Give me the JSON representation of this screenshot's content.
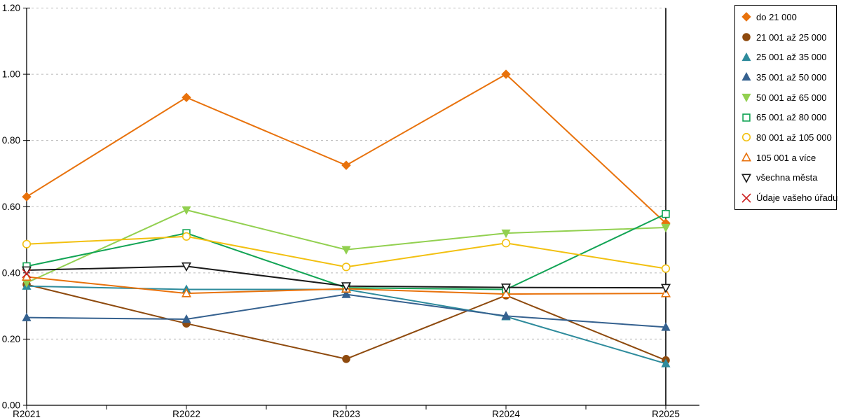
{
  "chart_data": {
    "type": "line",
    "title": "",
    "xlabel": "",
    "ylabel": "",
    "categories": [
      "R2021",
      "R2022",
      "R2023",
      "R2024",
      "R2025"
    ],
    "ylim": [
      0.0,
      1.2
    ],
    "ytick_step": 0.2,
    "ytick_labels": [
      "0.00",
      "0.20",
      "0.40",
      "0.60",
      "0.80",
      "1.00",
      "1.20"
    ],
    "grid": "horizontal-dashed",
    "grid_color": "#b8b8b8",
    "axis_color": "#000000",
    "legend_position": "right-boxed",
    "series": [
      {
        "name": "do 21 000",
        "color": "#e8720c",
        "marker": "diamond",
        "fill": "solid",
        "values": [
          0.63,
          0.93,
          0.725,
          1.0,
          0.55
        ]
      },
      {
        "name": "21 001 až 25 000",
        "color": "#8e4a0e",
        "marker": "circle",
        "fill": "solid",
        "values": [
          0.365,
          0.247,
          0.14,
          0.332,
          0.136
        ]
      },
      {
        "name": "25 001 až 35 000",
        "color": "#2e8b9c",
        "marker": "triangle-up",
        "fill": "solid",
        "values": [
          0.36,
          0.35,
          0.35,
          0.268,
          0.126
        ]
      },
      {
        "name": "35 001 až 50 000",
        "color": "#35618f",
        "marker": "triangle-up",
        "fill": "solid",
        "values": [
          0.265,
          0.26,
          0.335,
          0.27,
          0.236
        ]
      },
      {
        "name": "50 001 až 65 000",
        "color": "#92d050",
        "marker": "triangle-down",
        "fill": "solid",
        "values": [
          0.37,
          0.59,
          0.47,
          0.52,
          0.537
        ]
      },
      {
        "name": "65 001 až 80 000",
        "color": "#12a455",
        "marker": "square",
        "fill": "open",
        "values": [
          0.42,
          0.52,
          0.355,
          0.35,
          0.578
        ]
      },
      {
        "name": "80 001 až 105 000",
        "color": "#f2c010",
        "marker": "circle",
        "fill": "open",
        "values": [
          0.487,
          0.51,
          0.418,
          0.49,
          0.413
        ]
      },
      {
        "name": "105 001 a více",
        "color": "#e8720c",
        "marker": "triangle-up",
        "fill": "open",
        "values": [
          0.388,
          0.338,
          0.352,
          0.336,
          0.338
        ]
      },
      {
        "name": "všechna města",
        "color": "#1a1a1a",
        "marker": "triangle-down",
        "fill": "open",
        "values": [
          0.408,
          0.42,
          0.36,
          0.356,
          0.355
        ]
      },
      {
        "name": "Údaje vašeho úřadu",
        "color": "#cc2222",
        "marker": "x",
        "fill": "open",
        "values": [
          0.398,
          null,
          null,
          null,
          null
        ]
      }
    ]
  }
}
